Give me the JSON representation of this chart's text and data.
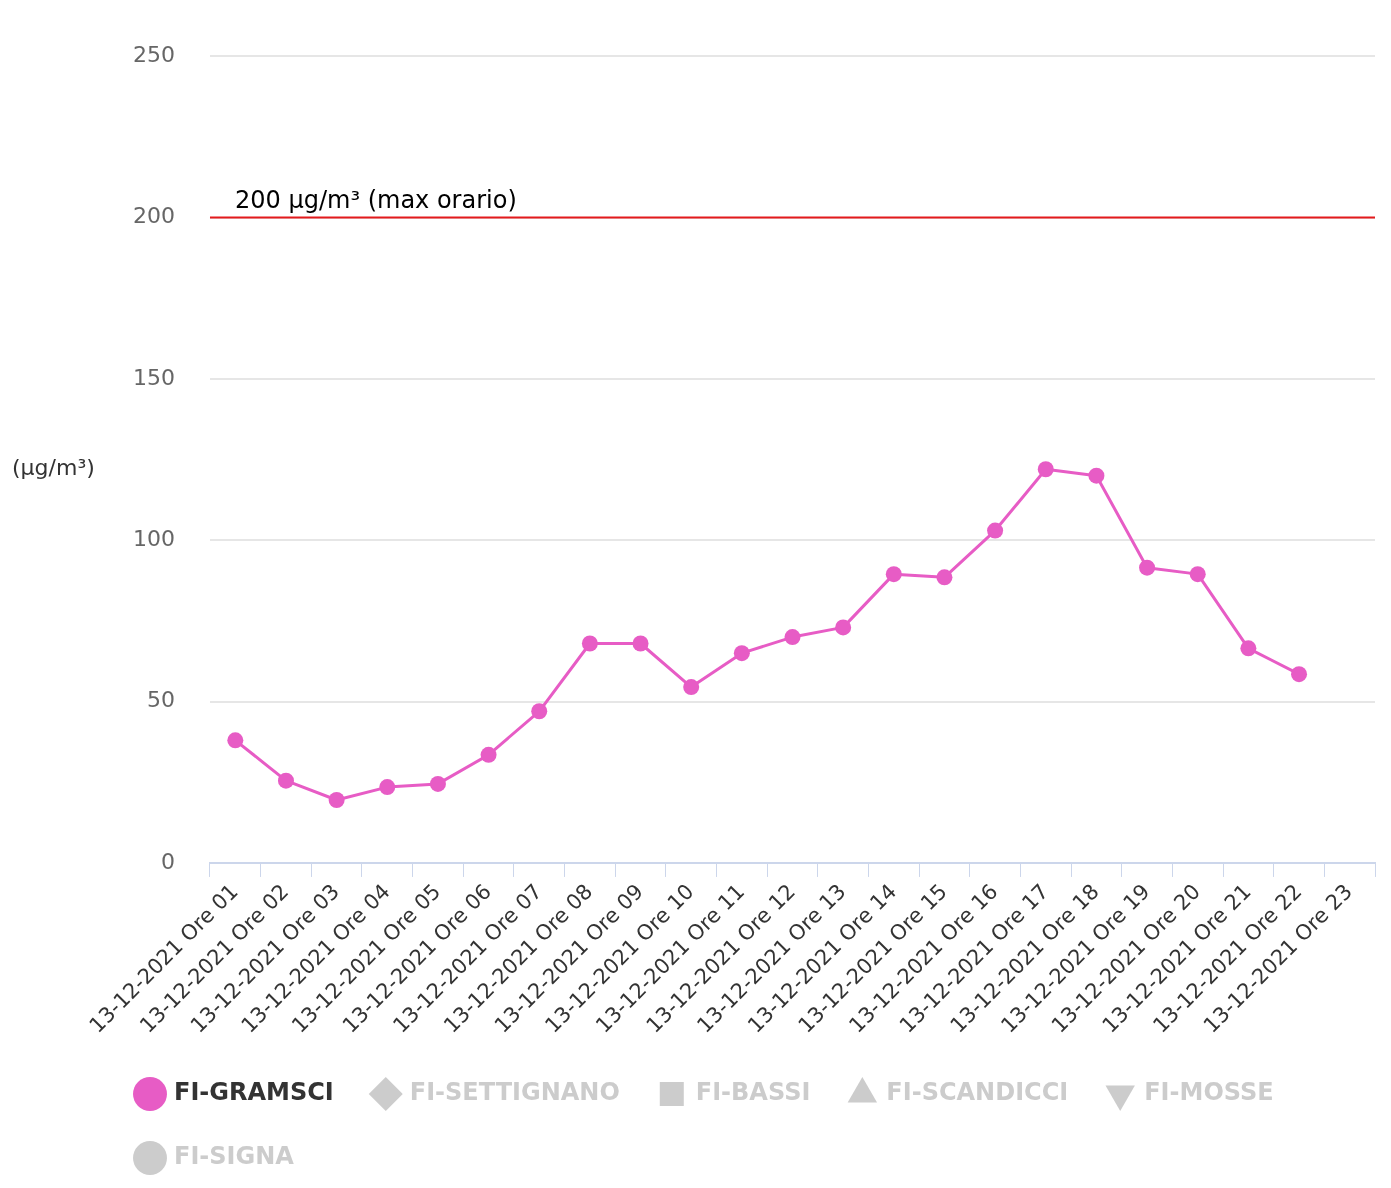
{
  "chart_data": {
    "type": "line",
    "ylabel": "(μg/m³)",
    "categories": [
      "13-12-2021 Ore 01",
      "13-12-2021 Ore 02",
      "13-12-2021 Ore 03",
      "13-12-2021 Ore 04",
      "13-12-2021 Ore 05",
      "13-12-2021 Ore 06",
      "13-12-2021 Ore 07",
      "13-12-2021 Ore 08",
      "13-12-2021 Ore 09",
      "13-12-2021 Ore 10",
      "13-12-2021 Ore 11",
      "13-12-2021 Ore 12",
      "13-12-2021 Ore 13",
      "13-12-2021 Ore 14",
      "13-12-2021 Ore 15",
      "13-12-2021 Ore 16",
      "13-12-2021 Ore 17",
      "13-12-2021 Ore 18",
      "13-12-2021 Ore 19",
      "13-12-2021 Ore 20",
      "13-12-2021 Ore 21",
      "13-12-2021 Ore 22",
      "13-12-2021 Ore 23"
    ],
    "series": [
      {
        "name": "FI-GRAMSCI",
        "color": "#e75cc5",
        "marker": "circle",
        "values": [
          38,
          25.5,
          19.5,
          23.5,
          24.5,
          33.5,
          47,
          68,
          68,
          54.5,
          65,
          70,
          73,
          89.5,
          88.5,
          103,
          122,
          120,
          91.5,
          89.5,
          66.5,
          58.5,
          null
        ]
      },
      {
        "name": "FI-SETTIGNANO",
        "color": "#cccccc",
        "marker": "diamond",
        "values": [
          null,
          null,
          null,
          null,
          null,
          null,
          null,
          null,
          null,
          null,
          null,
          null,
          null,
          null,
          null,
          null,
          null,
          null,
          null,
          null,
          null,
          null,
          null
        ]
      },
      {
        "name": "FI-BASSI",
        "color": "#cccccc",
        "marker": "square",
        "values": [
          null,
          null,
          null,
          null,
          null,
          null,
          null,
          null,
          null,
          null,
          null,
          null,
          null,
          null,
          null,
          null,
          null,
          null,
          null,
          null,
          null,
          null,
          null
        ]
      },
      {
        "name": "FI-SCANDICCI",
        "color": "#cccccc",
        "marker": "triangle",
        "values": [
          null,
          null,
          null,
          null,
          null,
          null,
          null,
          null,
          null,
          null,
          null,
          null,
          null,
          null,
          null,
          null,
          null,
          null,
          null,
          null,
          null,
          null,
          null
        ]
      },
      {
        "name": "FI-MOSSE",
        "color": "#cccccc",
        "marker": "triangle-down",
        "values": [
          null,
          null,
          null,
          null,
          null,
          null,
          null,
          null,
          null,
          null,
          null,
          null,
          null,
          null,
          null,
          null,
          null,
          null,
          null,
          null,
          null,
          null,
          null
        ]
      },
      {
        "name": "FI-SIGNA",
        "color": "#cccccc",
        "marker": "circle",
        "values": [
          null,
          null,
          null,
          null,
          null,
          null,
          null,
          null,
          null,
          null,
          null,
          null,
          null,
          null,
          null,
          null,
          null,
          null,
          null,
          null,
          null,
          null,
          null
        ]
      }
    ],
    "ylim": [
      0,
      250
    ],
    "yticks": [
      0,
      50,
      100,
      150,
      200,
      250
    ],
    "grid": "y",
    "legend": "bottom",
    "line_style": "solid",
    "ref_lines": [
      {
        "axis": "y",
        "value": 200,
        "label": "200 μg/m³ (max orario)",
        "color": "#e41a1c"
      }
    ]
  }
}
